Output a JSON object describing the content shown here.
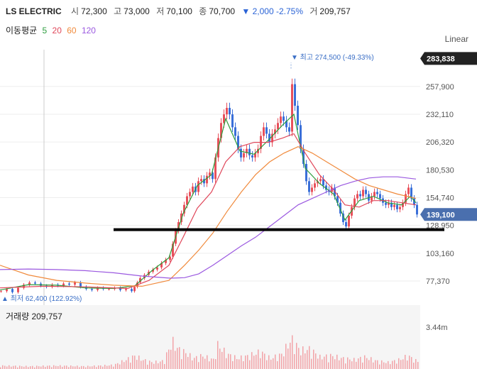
{
  "header": {
    "name": "LS ELECTRIC",
    "open_label": "시",
    "open": "72,300",
    "high_label": "고",
    "high": "73,000",
    "low_label": "저",
    "low": "70,100",
    "close_label": "종",
    "close": "70,700",
    "change": "▼ 2,000 -2.75%",
    "volume_label": "거",
    "volume": "209,757"
  },
  "ma_legend": {
    "title": "이동평균",
    "items": [
      {
        "label": "5",
        "color": "#2e9e3f"
      },
      {
        "label": "20",
        "color": "#e0475a"
      },
      {
        "label": "60",
        "color": "#f08a3c"
      },
      {
        "label": "120",
        "color": "#9b59e0"
      }
    ]
  },
  "scale_mode": "Linear",
  "volume_panel": {
    "label": "거래량 209,757",
    "top_tick": "3.44m"
  },
  "chart_data": {
    "type": "line",
    "subtype": "candlestick",
    "ylim": [
      55000,
      292000
    ],
    "yticks": [
      "257,900",
      "232,110",
      "206,320",
      "180,530",
      "154,740",
      "128,950",
      "103,160",
      "77,370"
    ],
    "ytick_values": [
      257900,
      232110,
      206320,
      180530,
      154740,
      128950,
      103160,
      77370
    ],
    "top_tag": "283,838",
    "top_tag_value": 283838,
    "price_tag": "139,100",
    "price_tag_value": 139100,
    "annotations": {
      "high": "▼ 최고 274,500 (-49.33%)",
      "high_value": 274500,
      "low": "▲ 최저 62,400 (122.92%)",
      "low_value": 62400
    },
    "support_line_value": 125000,
    "colors": {
      "up": "#e8505b",
      "down": "#3a6fd8",
      "volume": "#f2a3a8",
      "grid": "#eeeeee",
      "tag_dark": "#222222",
      "tag_blue": "#4a6fae"
    },
    "close_points": [
      [
        0,
        68000
      ],
      [
        8,
        70000
      ],
      [
        16,
        67000
      ],
      [
        24,
        71000
      ],
      [
        32,
        74000
      ],
      [
        40,
        76000
      ],
      [
        48,
        75000
      ],
      [
        56,
        73000
      ],
      [
        64,
        72000
      ],
      [
        72,
        74000
      ],
      [
        80,
        73000
      ],
      [
        88,
        75000
      ],
      [
        96,
        74000
      ],
      [
        104,
        76000
      ],
      [
        112,
        72000
      ],
      [
        120,
        70000
      ],
      [
        128,
        69000
      ],
      [
        136,
        71000
      ],
      [
        144,
        70000
      ],
      [
        152,
        70000
      ],
      [
        160,
        71000
      ],
      [
        168,
        69000
      ],
      [
        176,
        70000
      ],
      [
        184,
        68000
      ],
      [
        188,
        72000
      ],
      [
        192,
        76000
      ],
      [
        196,
        80000
      ],
      [
        202,
        83000
      ],
      [
        208,
        86000
      ],
      [
        214,
        88000
      ],
      [
        220,
        90000
      ],
      [
        226,
        94000
      ],
      [
        232,
        97000
      ],
      [
        238,
        100000
      ],
      [
        242,
        112000
      ],
      [
        246,
        124000
      ],
      [
        250,
        132000
      ],
      [
        254,
        140000
      ],
      [
        258,
        148000
      ],
      [
        262,
        156000
      ],
      [
        266,
        160000
      ],
      [
        270,
        165000
      ],
      [
        274,
        160000
      ],
      [
        278,
        170000
      ],
      [
        282,
        172000
      ],
      [
        286,
        168000
      ],
      [
        290,
        175000
      ],
      [
        294,
        178000
      ],
      [
        298,
        172000
      ],
      [
        302,
        192000
      ],
      [
        306,
        210000
      ],
      [
        310,
        224000
      ],
      [
        314,
        232000
      ],
      [
        318,
        238000
      ],
      [
        322,
        232000
      ],
      [
        326,
        220000
      ],
      [
        330,
        212000
      ],
      [
        334,
        200000
      ],
      [
        338,
        192000
      ],
      [
        342,
        196000
      ],
      [
        346,
        200000
      ],
      [
        350,
        194000
      ],
      [
        354,
        192000
      ],
      [
        358,
        196000
      ],
      [
        362,
        200000
      ],
      [
        366,
        212000
      ],
      [
        370,
        220000
      ],
      [
        374,
        214000
      ],
      [
        378,
        206000
      ],
      [
        382,
        214000
      ],
      [
        386,
        218000
      ],
      [
        390,
        224000
      ],
      [
        394,
        230000
      ],
      [
        398,
        226000
      ],
      [
        402,
        220000
      ],
      [
        406,
        216000
      ],
      [
        410,
        260000
      ],
      [
        414,
        240000
      ],
      [
        418,
        222000
      ],
      [
        422,
        200000
      ],
      [
        426,
        186000
      ],
      [
        430,
        170000
      ],
      [
        434,
        160000
      ],
      [
        438,
        164000
      ],
      [
        442,
        168000
      ],
      [
        446,
        170000
      ],
      [
        450,
        172000
      ],
      [
        454,
        166000
      ],
      [
        458,
        162000
      ],
      [
        462,
        160000
      ],
      [
        466,
        164000
      ],
      [
        470,
        156000
      ],
      [
        474,
        150000
      ],
      [
        478,
        140000
      ],
      [
        482,
        132000
      ],
      [
        486,
        128000
      ],
      [
        490,
        138000
      ],
      [
        494,
        146000
      ],
      [
        498,
        154000
      ],
      [
        502,
        158000
      ],
      [
        506,
        156000
      ],
      [
        510,
        162000
      ],
      [
        514,
        158000
      ],
      [
        518,
        152000
      ],
      [
        522,
        156000
      ],
      [
        526,
        160000
      ],
      [
        530,
        158000
      ],
      [
        534,
        154000
      ],
      [
        538,
        150000
      ],
      [
        542,
        148000
      ],
      [
        546,
        150000
      ],
      [
        550,
        146000
      ],
      [
        554,
        148000
      ],
      [
        558,
        144000
      ],
      [
        562,
        146000
      ],
      [
        566,
        150000
      ],
      [
        570,
        158000
      ],
      [
        574,
        164000
      ],
      [
        578,
        154000
      ],
      [
        582,
        148000
      ],
      [
        586,
        139100
      ]
    ],
    "ma5": [
      [
        0,
        69000
      ],
      [
        40,
        74000
      ],
      [
        80,
        73500
      ],
      [
        120,
        71000
      ],
      [
        160,
        70500
      ],
      [
        190,
        73000
      ],
      [
        214,
        87000
      ],
      [
        238,
        99000
      ],
      [
        258,
        140000
      ],
      [
        278,
        166000
      ],
      [
        298,
        176000
      ],
      [
        318,
        228000
      ],
      [
        338,
        198000
      ],
      [
        358,
        195000
      ],
      [
        378,
        208000
      ],
      [
        398,
        222000
      ],
      [
        414,
        232000
      ],
      [
        430,
        182000
      ],
      [
        450,
        168000
      ],
      [
        470,
        158000
      ],
      [
        486,
        134000
      ],
      [
        506,
        152000
      ],
      [
        526,
        156000
      ],
      [
        546,
        150000
      ],
      [
        566,
        148000
      ],
      [
        578,
        156000
      ],
      [
        586,
        150000
      ]
    ],
    "ma20": [
      [
        0,
        71000
      ],
      [
        60,
        72500
      ],
      [
        120,
        72000
      ],
      [
        180,
        70500
      ],
      [
        210,
        78000
      ],
      [
        238,
        92000
      ],
      [
        258,
        118000
      ],
      [
        278,
        145000
      ],
      [
        298,
        160000
      ],
      [
        318,
        188000
      ],
      [
        338,
        202000
      ],
      [
        358,
        206000
      ],
      [
        378,
        206000
      ],
      [
        398,
        210000
      ],
      [
        414,
        214000
      ],
      [
        430,
        196000
      ],
      [
        450,
        176000
      ],
      [
        470,
        162000
      ],
      [
        486,
        148000
      ],
      [
        506,
        146000
      ],
      [
        526,
        152000
      ],
      [
        546,
        152000
      ],
      [
        566,
        150000
      ],
      [
        586,
        148000
      ]
    ],
    "ma60": [
      [
        0,
        92000
      ],
      [
        40,
        83000
      ],
      [
        80,
        78000
      ],
      [
        120,
        75500
      ],
      [
        160,
        73500
      ],
      [
        200,
        72500
      ],
      [
        238,
        78000
      ],
      [
        260,
        92000
      ],
      [
        280,
        106000
      ],
      [
        300,
        122000
      ],
      [
        320,
        142000
      ],
      [
        340,
        160000
      ],
      [
        360,
        176000
      ],
      [
        380,
        188000
      ],
      [
        400,
        196000
      ],
      [
        420,
        202000
      ],
      [
        440,
        196000
      ],
      [
        460,
        188000
      ],
      [
        480,
        180000
      ],
      [
        500,
        172000
      ],
      [
        520,
        166000
      ],
      [
        540,
        162000
      ],
      [
        560,
        158000
      ],
      [
        586,
        154000
      ]
    ],
    "ma120": [
      [
        0,
        88000
      ],
      [
        40,
        88500
      ],
      [
        80,
        88000
      ],
      [
        120,
        87000
      ],
      [
        160,
        85000
      ],
      [
        200,
        82000
      ],
      [
        240,
        80000
      ],
      [
        260,
        80500
      ],
      [
        280,
        84000
      ],
      [
        300,
        92000
      ],
      [
        320,
        101000
      ],
      [
        340,
        110000
      ],
      [
        360,
        118000
      ],
      [
        380,
        128000
      ],
      [
        400,
        138000
      ],
      [
        420,
        148000
      ],
      [
        440,
        154000
      ],
      [
        460,
        160000
      ],
      [
        480,
        166000
      ],
      [
        500,
        170000
      ],
      [
        520,
        173000
      ],
      [
        540,
        174000
      ],
      [
        560,
        174000
      ],
      [
        586,
        172000
      ]
    ],
    "volume_profile": [
      [
        0,
        0.05
      ],
      [
        40,
        0.04
      ],
      [
        80,
        0.05
      ],
      [
        120,
        0.04
      ],
      [
        160,
        0.06
      ],
      [
        190,
        0.2
      ],
      [
        200,
        0.14
      ],
      [
        214,
        0.1
      ],
      [
        230,
        0.12
      ],
      [
        242,
        0.42
      ],
      [
        250,
        0.3
      ],
      [
        262,
        0.24
      ],
      [
        272,
        0.16
      ],
      [
        284,
        0.2
      ],
      [
        300,
        0.14
      ],
      [
        306,
        0.36
      ],
      [
        320,
        0.22
      ],
      [
        334,
        0.16
      ],
      [
        350,
        0.2
      ],
      [
        366,
        0.26
      ],
      [
        380,
        0.16
      ],
      [
        396,
        0.22
      ],
      [
        410,
        0.45
      ],
      [
        422,
        0.28
      ],
      [
        436,
        0.3
      ],
      [
        450,
        0.18
      ],
      [
        466,
        0.2
      ],
      [
        482,
        0.16
      ],
      [
        498,
        0.14
      ],
      [
        514,
        0.18
      ],
      [
        530,
        0.12
      ],
      [
        546,
        0.1
      ],
      [
        562,
        0.14
      ],
      [
        574,
        0.2
      ],
      [
        586,
        0.12
      ]
    ]
  }
}
